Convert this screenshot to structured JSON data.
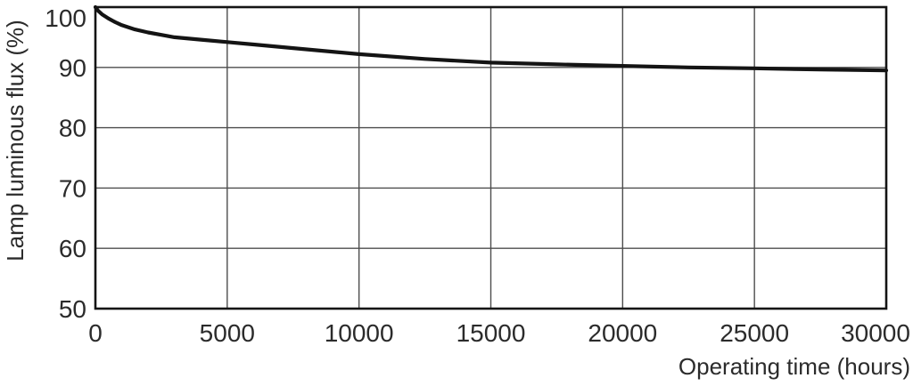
{
  "chart_data": {
    "type": "line",
    "title": "",
    "xlabel": "Operating time (hours)",
    "ylabel": "Lamp luminous flux (%)",
    "xlim": [
      0,
      30000
    ],
    "ylim": [
      50,
      100
    ],
    "x_ticks": [
      0,
      5000,
      10000,
      15000,
      20000,
      25000,
      30000
    ],
    "y_ticks": [
      50,
      60,
      70,
      80,
      90,
      100
    ],
    "grid": true,
    "legend": false,
    "colors": {
      "line": "#141414",
      "grid": "#4d4d4d",
      "border": "#141414",
      "text": "#2b2b2b",
      "background": "#ffffff"
    },
    "series": [
      {
        "name": "Lamp luminous flux",
        "x": [
          0,
          100,
          250,
          500,
          750,
          1000,
          1500,
          2000,
          2500,
          3000,
          4000,
          5000,
          6000,
          7500,
          10000,
          12500,
          15000,
          17500,
          20000,
          22500,
          25000,
          27500,
          30000
        ],
        "y": [
          100,
          99.4,
          98.8,
          98.1,
          97.5,
          97.0,
          96.3,
          95.8,
          95.4,
          95.0,
          94.6,
          94.2,
          93.8,
          93.2,
          92.2,
          91.4,
          90.8,
          90.5,
          90.25,
          90.0,
          89.85,
          89.65,
          89.5
        ]
      }
    ]
  }
}
